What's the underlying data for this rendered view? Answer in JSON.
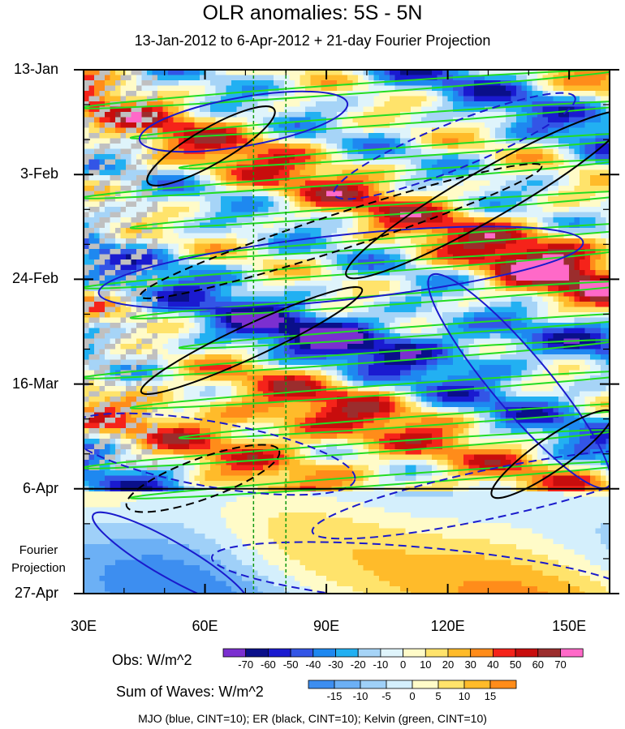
{
  "chart_data": {
    "type": "heatmap",
    "title": "OLR anomalies: 5S - 5N",
    "subtitle": "13-Jan-2012 to 6-Apr-2012 + 21-day Fourier Projection",
    "xlabel": "",
    "ylabel": "",
    "x_range": [
      30,
      160
    ],
    "x_ticks": [
      {
        "value": 30,
        "label": "30E"
      },
      {
        "value": 60,
        "label": "60E"
      },
      {
        "value": 90,
        "label": "90E"
      },
      {
        "value": 120,
        "label": "120E"
      },
      {
        "value": 150,
        "label": "150E"
      }
    ],
    "y_ticks": [
      {
        "day": 0,
        "label": "13-Jan"
      },
      {
        "day": 21,
        "label": "3-Feb"
      },
      {
        "day": 42,
        "label": "24-Feb"
      },
      {
        "day": 63,
        "label": "16-Mar"
      },
      {
        "day": 84,
        "label": "6-Apr"
      },
      {
        "day": 105,
        "label": "27-Apr"
      }
    ],
    "y_range_days": [
      0,
      105
    ],
    "projection_start_day": 84,
    "projection_label": "Fourier Projection",
    "reference_longitudes": [
      72,
      80
    ],
    "obs_colorbar": {
      "title": "Obs: W/m^2",
      "levels": [
        -70,
        -60,
        -50,
        -40,
        -30,
        -20,
        -10,
        0,
        10,
        20,
        30,
        40,
        50,
        60,
        70
      ],
      "colors": [
        "#7b2fd0",
        "#0a0f8a",
        "#1a1ad0",
        "#3355e6",
        "#1e88f0",
        "#22b0f2",
        "#a6d4f7",
        "#dff4fb",
        "#fffbc8",
        "#ffe36b",
        "#ffbb2a",
        "#ff8c1a",
        "#f5231a",
        "#c80d0d",
        "#9b2d2d",
        "#ff69c8"
      ]
    },
    "waves_colorbar": {
      "title": "Sum of Waves: W/m^2",
      "levels": [
        -15,
        -10,
        -5,
        0,
        5,
        10,
        15
      ],
      "colors": [
        "#3d8ef0",
        "#6cb0f5",
        "#9fd0f8",
        "#d4effc",
        "#fffbc8",
        "#ffe36b",
        "#ffbb2a",
        "#ff8c1a"
      ]
    },
    "contours_legend": "MJO (blue, CINT=10); ER (black, CINT=10); Kelvin (green, CINT=10)",
    "contour_colors": {
      "mjo": "#1a1acc",
      "er": "#000000",
      "kelvin": "#22dd22"
    }
  }
}
